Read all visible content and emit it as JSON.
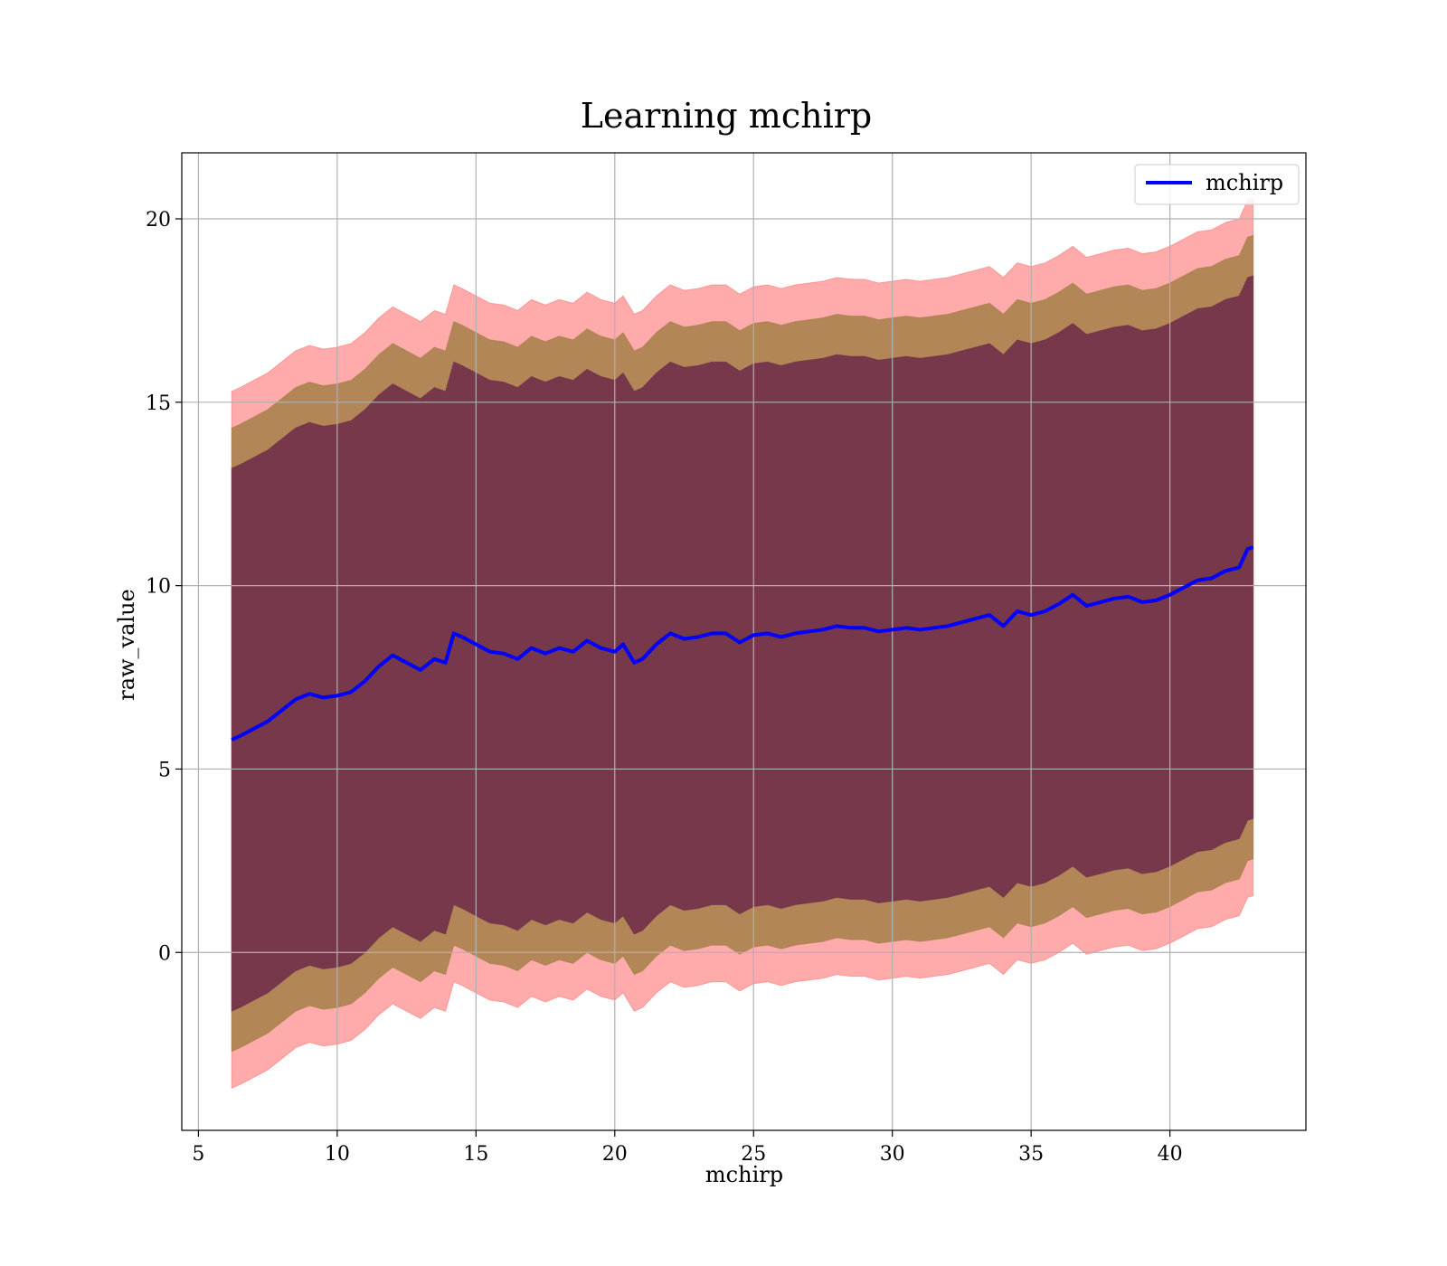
{
  "chart_data": {
    "type": "line",
    "title": "Learning mchirp",
    "xlabel": "mchirp",
    "ylabel": "raw_value",
    "xlim": [
      4.4,
      44.9
    ],
    "ylim": [
      -4.85,
      21.8
    ],
    "x_ticks": [
      5,
      10,
      15,
      20,
      25,
      30,
      35,
      40
    ],
    "y_ticks": [
      0,
      5,
      10,
      15,
      20
    ],
    "grid": true,
    "legend_position": "top-right",
    "colors": {
      "line": "#0000ff",
      "band_outer": "#ff6666",
      "band_middle": "#9a7a3c",
      "band_inner": "#6b2a48",
      "grid": "#b0b0b0"
    },
    "series": [
      {
        "name": "mchirp",
        "x": [
          6.2,
          6.5,
          7.0,
          7.5,
          8.0,
          8.5,
          9.0,
          9.5,
          10.0,
          10.5,
          11.0,
          11.5,
          12.0,
          12.5,
          13.0,
          13.5,
          13.9,
          14.2,
          14.5,
          15.0,
          15.5,
          16.0,
          16.5,
          17.0,
          17.5,
          18.0,
          18.5,
          19.0,
          19.5,
          20.0,
          20.3,
          20.7,
          21.0,
          21.5,
          22.0,
          22.5,
          23.0,
          23.5,
          24.0,
          24.5,
          25.0,
          25.5,
          26.0,
          26.5,
          27.0,
          27.5,
          28.0,
          28.5,
          29.0,
          29.5,
          30.0,
          30.5,
          31.0,
          31.5,
          32.0,
          32.5,
          33.0,
          33.5,
          34.0,
          34.5,
          35.0,
          35.5,
          36.0,
          36.5,
          37.0,
          37.5,
          38.0,
          38.5,
          39.0,
          39.5,
          40.0,
          40.5,
          41.0,
          41.5,
          42.0,
          42.5,
          42.8,
          43.0
        ],
        "y": [
          5.8,
          5.9,
          6.1,
          6.3,
          6.6,
          6.9,
          7.05,
          6.95,
          7.0,
          7.1,
          7.4,
          7.8,
          8.1,
          7.9,
          7.7,
          8.0,
          7.9,
          8.7,
          8.6,
          8.4,
          8.2,
          8.15,
          8.0,
          8.3,
          8.15,
          8.3,
          8.2,
          8.5,
          8.3,
          8.2,
          8.4,
          7.9,
          8.0,
          8.4,
          8.7,
          8.55,
          8.6,
          8.7,
          8.7,
          8.45,
          8.65,
          8.7,
          8.6,
          8.7,
          8.75,
          8.8,
          8.9,
          8.85,
          8.85,
          8.75,
          8.8,
          8.85,
          8.8,
          8.85,
          8.9,
          9.0,
          9.1,
          9.2,
          8.9,
          9.3,
          9.2,
          9.3,
          9.5,
          9.75,
          9.45,
          9.55,
          9.65,
          9.7,
          9.55,
          9.6,
          9.75,
          9.95,
          10.15,
          10.2,
          10.4,
          10.5,
          11.0,
          11.05
        ]
      }
    ],
    "bands": [
      {
        "label": "outer",
        "x": [
          6.2,
          6.5,
          7.0,
          7.5,
          8.0,
          8.5,
          9.0,
          9.5,
          10.0,
          10.5,
          11.0,
          11.5,
          12.0,
          12.5,
          13.0,
          13.5,
          13.9,
          14.2,
          14.5,
          15.0,
          15.5,
          16.0,
          16.5,
          17.0,
          17.5,
          18.0,
          18.5,
          19.0,
          19.5,
          20.0,
          20.3,
          20.7,
          21.0,
          21.5,
          22.0,
          22.5,
          23.0,
          23.5,
          24.0,
          24.5,
          25.0,
          25.5,
          26.0,
          26.5,
          27.0,
          27.5,
          28.0,
          28.5,
          29.0,
          29.5,
          30.0,
          30.5,
          31.0,
          31.5,
          32.0,
          32.5,
          33.0,
          33.5,
          34.0,
          34.5,
          35.0,
          35.5,
          36.0,
          36.5,
          37.0,
          37.5,
          38.0,
          38.5,
          39.0,
          39.5,
          40.0,
          40.5,
          41.0,
          41.5,
          42.0,
          42.5,
          42.8,
          43.0
        ],
        "lower": [
          -3.7,
          -3.6,
          -3.4,
          -3.2,
          -2.9,
          -2.6,
          -2.45,
          -2.55,
          -2.5,
          -2.4,
          -2.1,
          -1.7,
          -1.4,
          -1.6,
          -1.8,
          -1.5,
          -1.6,
          -0.8,
          -0.9,
          -1.1,
          -1.3,
          -1.35,
          -1.5,
          -1.2,
          -1.35,
          -1.2,
          -1.3,
          -1.0,
          -1.2,
          -1.3,
          -1.1,
          -1.6,
          -1.5,
          -1.1,
          -0.8,
          -0.95,
          -0.9,
          -0.8,
          -0.8,
          -1.05,
          -0.85,
          -0.8,
          -0.9,
          -0.8,
          -0.75,
          -0.7,
          -0.6,
          -0.65,
          -0.65,
          -0.75,
          -0.7,
          -0.65,
          -0.7,
          -0.65,
          -0.6,
          -0.5,
          -0.4,
          -0.3,
          -0.6,
          -0.2,
          -0.3,
          -0.2,
          0.0,
          0.25,
          -0.05,
          0.05,
          0.15,
          0.2,
          0.05,
          0.1,
          0.25,
          0.45,
          0.65,
          0.7,
          0.9,
          1.0,
          1.5,
          1.55
        ],
        "upper": [
          15.3,
          15.4,
          15.6,
          15.8,
          16.1,
          16.4,
          16.55,
          16.45,
          16.5,
          16.6,
          16.9,
          17.3,
          17.6,
          17.4,
          17.2,
          17.5,
          17.4,
          18.2,
          18.1,
          17.9,
          17.7,
          17.65,
          17.5,
          17.8,
          17.65,
          17.8,
          17.7,
          18.0,
          17.8,
          17.7,
          17.9,
          17.4,
          17.5,
          17.9,
          18.2,
          18.05,
          18.1,
          18.2,
          18.2,
          17.95,
          18.15,
          18.2,
          18.1,
          18.2,
          18.25,
          18.3,
          18.4,
          18.35,
          18.35,
          18.25,
          18.3,
          18.35,
          18.3,
          18.35,
          18.4,
          18.5,
          18.6,
          18.7,
          18.4,
          18.8,
          18.7,
          18.8,
          19.0,
          19.25,
          18.95,
          19.05,
          19.15,
          19.2,
          19.05,
          19.1,
          19.25,
          19.45,
          19.65,
          19.7,
          19.9,
          20.0,
          20.5,
          20.55
        ]
      },
      {
        "label": "middle",
        "x": [
          6.2,
          6.5,
          7.0,
          7.5,
          8.0,
          8.5,
          9.0,
          9.5,
          10.0,
          10.5,
          11.0,
          11.5,
          12.0,
          12.5,
          13.0,
          13.5,
          13.9,
          14.2,
          14.5,
          15.0,
          15.5,
          16.0,
          16.5,
          17.0,
          17.5,
          18.0,
          18.5,
          19.0,
          19.5,
          20.0,
          20.3,
          20.7,
          21.0,
          21.5,
          22.0,
          22.5,
          23.0,
          23.5,
          24.0,
          24.5,
          25.0,
          25.5,
          26.0,
          26.5,
          27.0,
          27.5,
          28.0,
          28.5,
          29.0,
          29.5,
          30.0,
          30.5,
          31.0,
          31.5,
          32.0,
          32.5,
          33.0,
          33.5,
          34.0,
          34.5,
          35.0,
          35.5,
          36.0,
          36.5,
          37.0,
          37.5,
          38.0,
          38.5,
          39.0,
          39.5,
          40.0,
          40.5,
          41.0,
          41.5,
          42.0,
          42.5,
          42.8,
          43.0
        ],
        "lower": [
          -2.7,
          -2.6,
          -2.4,
          -2.2,
          -1.9,
          -1.6,
          -1.45,
          -1.55,
          -1.5,
          -1.4,
          -1.1,
          -0.7,
          -0.4,
          -0.6,
          -0.8,
          -0.5,
          -0.6,
          0.2,
          0.1,
          -0.1,
          -0.3,
          -0.35,
          -0.5,
          -0.2,
          -0.35,
          -0.2,
          -0.3,
          0.0,
          -0.2,
          -0.3,
          -0.1,
          -0.6,
          -0.5,
          -0.1,
          0.2,
          0.05,
          0.1,
          0.2,
          0.2,
          -0.05,
          0.15,
          0.2,
          0.1,
          0.2,
          0.25,
          0.3,
          0.4,
          0.35,
          0.35,
          0.25,
          0.3,
          0.35,
          0.3,
          0.35,
          0.4,
          0.5,
          0.6,
          0.7,
          0.4,
          0.8,
          0.7,
          0.8,
          1.0,
          1.25,
          0.95,
          1.05,
          1.15,
          1.2,
          1.05,
          1.1,
          1.25,
          1.45,
          1.65,
          1.7,
          1.9,
          2.0,
          2.5,
          2.55
        ],
        "upper": [
          14.3,
          14.4,
          14.6,
          14.8,
          15.1,
          15.4,
          15.55,
          15.45,
          15.5,
          15.6,
          15.9,
          16.3,
          16.6,
          16.4,
          16.2,
          16.5,
          16.4,
          17.2,
          17.1,
          16.9,
          16.7,
          16.65,
          16.5,
          16.8,
          16.65,
          16.8,
          16.7,
          17.0,
          16.8,
          16.7,
          16.9,
          16.4,
          16.5,
          16.9,
          17.2,
          17.05,
          17.1,
          17.2,
          17.2,
          16.95,
          17.15,
          17.2,
          17.1,
          17.2,
          17.25,
          17.3,
          17.4,
          17.35,
          17.35,
          17.25,
          17.3,
          17.35,
          17.3,
          17.35,
          17.4,
          17.5,
          17.6,
          17.7,
          17.4,
          17.8,
          17.7,
          17.8,
          18.0,
          18.25,
          17.95,
          18.05,
          18.15,
          18.2,
          18.05,
          18.1,
          18.25,
          18.45,
          18.65,
          18.7,
          18.9,
          19.0,
          19.5,
          19.55
        ]
      },
      {
        "label": "inner",
        "x": [
          6.2,
          6.5,
          7.0,
          7.5,
          8.0,
          8.5,
          9.0,
          9.5,
          10.0,
          10.5,
          11.0,
          11.5,
          12.0,
          12.5,
          13.0,
          13.5,
          13.9,
          14.2,
          14.5,
          15.0,
          15.5,
          16.0,
          16.5,
          17.0,
          17.5,
          18.0,
          18.5,
          19.0,
          19.5,
          20.0,
          20.3,
          20.7,
          21.0,
          21.5,
          22.0,
          22.5,
          23.0,
          23.5,
          24.0,
          24.5,
          25.0,
          25.5,
          26.0,
          26.5,
          27.0,
          27.5,
          28.0,
          28.5,
          29.0,
          29.5,
          30.0,
          30.5,
          31.0,
          31.5,
          32.0,
          32.5,
          33.0,
          33.5,
          34.0,
          34.5,
          35.0,
          35.5,
          36.0,
          36.5,
          37.0,
          37.5,
          38.0,
          38.5,
          39.0,
          39.5,
          40.0,
          40.5,
          41.0,
          41.5,
          42.0,
          42.5,
          42.8,
          43.0
        ],
        "lower": [
          -1.6,
          -1.5,
          -1.3,
          -1.1,
          -0.8,
          -0.5,
          -0.35,
          -0.45,
          -0.4,
          -0.3,
          0.0,
          0.4,
          0.7,
          0.5,
          0.3,
          0.6,
          0.5,
          1.3,
          1.2,
          1.0,
          0.8,
          0.75,
          0.6,
          0.9,
          0.75,
          0.9,
          0.8,
          1.1,
          0.9,
          0.8,
          1.0,
          0.5,
          0.6,
          1.0,
          1.3,
          1.15,
          1.2,
          1.3,
          1.3,
          1.05,
          1.25,
          1.3,
          1.2,
          1.3,
          1.35,
          1.4,
          1.5,
          1.45,
          1.45,
          1.35,
          1.4,
          1.45,
          1.4,
          1.45,
          1.5,
          1.6,
          1.7,
          1.8,
          1.5,
          1.9,
          1.8,
          1.9,
          2.1,
          2.35,
          2.05,
          2.15,
          2.25,
          2.3,
          2.15,
          2.2,
          2.35,
          2.55,
          2.75,
          2.8,
          3.0,
          3.1,
          3.6,
          3.65
        ],
        "upper": [
          13.2,
          13.3,
          13.5,
          13.7,
          14.0,
          14.3,
          14.45,
          14.35,
          14.4,
          14.5,
          14.8,
          15.2,
          15.5,
          15.3,
          15.1,
          15.4,
          15.3,
          16.1,
          16.0,
          15.8,
          15.6,
          15.55,
          15.4,
          15.7,
          15.55,
          15.7,
          15.6,
          15.9,
          15.7,
          15.6,
          15.8,
          15.3,
          15.4,
          15.8,
          16.1,
          15.95,
          16.0,
          16.1,
          16.1,
          15.85,
          16.05,
          16.1,
          16.0,
          16.1,
          16.15,
          16.2,
          16.3,
          16.25,
          16.25,
          16.15,
          16.2,
          16.25,
          16.2,
          16.25,
          16.3,
          16.4,
          16.5,
          16.6,
          16.3,
          16.7,
          16.6,
          16.7,
          16.9,
          17.15,
          16.85,
          16.95,
          17.05,
          17.1,
          16.95,
          17.0,
          17.15,
          17.35,
          17.55,
          17.6,
          17.8,
          17.9,
          18.4,
          18.45
        ]
      }
    ]
  }
}
